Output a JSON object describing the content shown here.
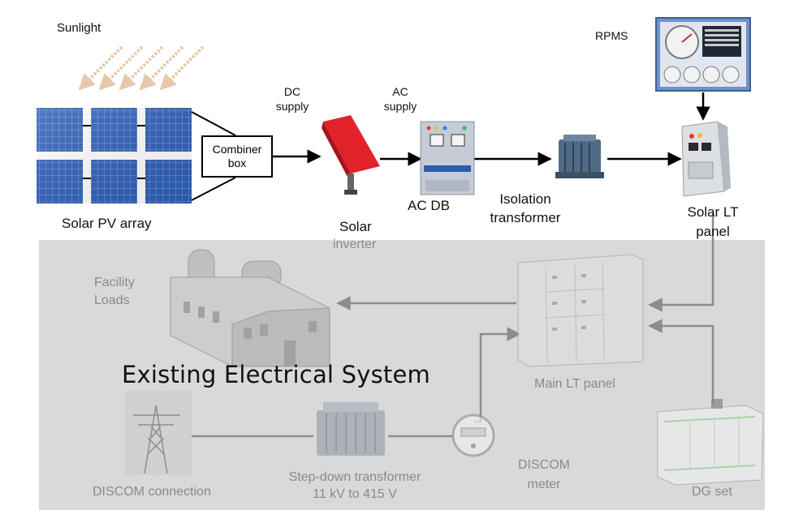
{
  "nodes": {
    "sunlight": "Sunlight",
    "solar_pv_array": "Solar PV array",
    "combiner_box": [
      "Combiner",
      "box"
    ],
    "dc_supply": [
      "DC",
      "supply"
    ],
    "ac_supply": [
      "AC",
      "supply"
    ],
    "solar_inverter": [
      "Solar",
      "inverter"
    ],
    "ac_db": "AC DB",
    "isolation_transformer": [
      "Isolation",
      "transformer"
    ],
    "rpms": "RPMS",
    "solar_lt_panel": [
      "Solar LT",
      "panel"
    ],
    "facility_loads": [
      "Facility",
      "Loads"
    ],
    "main_lt_panel": "Main LT panel",
    "discom_connection": "DISCOM connection",
    "step_down_transformer": [
      "Step-down transformer",
      "11 kV to 415 V"
    ],
    "discom_meter": [
      "DISCOM",
      "meter"
    ],
    "dg_set": "DG set"
  },
  "existing_system_title": "Existing Electrical System",
  "colors": {
    "existing_region_bg": "#d9d9d9",
    "faded_label": "#8a8a8a",
    "solar_panel_blue": "#2f5fb8",
    "inverter_red": "#e2222b",
    "sun_ray": "#e6c9a8",
    "arrow": "#000000",
    "faded_arrow": "#8c8c8c"
  },
  "icons": [
    "sunlight-rays-icon",
    "solar-panel-icon",
    "inverter-icon",
    "ac-db-cabinet-icon",
    "transformer-icon",
    "rpms-monitor-icon",
    "lt-panel-cabinet-icon",
    "factory-icon",
    "main-panel-cabinet-icon",
    "transmission-tower-icon",
    "energy-meter-icon",
    "generator-icon"
  ]
}
